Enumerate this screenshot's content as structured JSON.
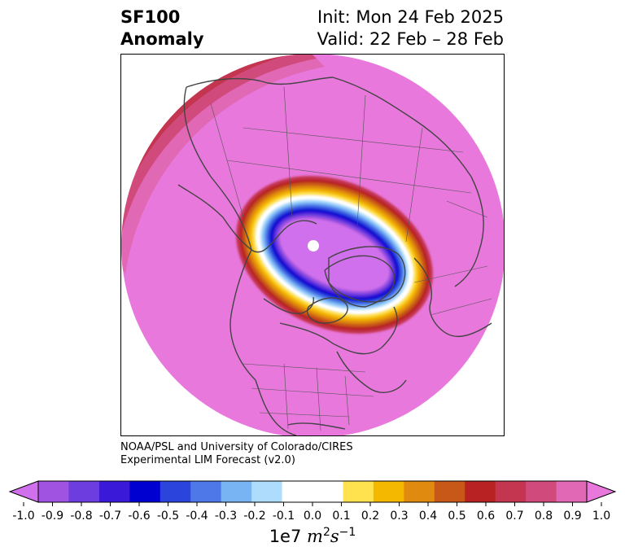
{
  "title": {
    "variable": "SF100",
    "type": "Anomaly",
    "init": "Init: Mon 24 Feb 2025",
    "valid": "Valid: 22 Feb – 28 Feb"
  },
  "credit": {
    "line1": "NOAA/PSL and University of Colorado/CIRES",
    "line2": "Experimental LIM Forecast (v2.0)"
  },
  "colorbar": {
    "unit_prefix": "1e7",
    "unit_m": "m",
    "unit_m_exp": "2",
    "unit_s": "s",
    "unit_s_exp": "−1",
    "ticks": [
      "-1.0",
      "-0.9",
      "-0.8",
      "-0.7",
      "-0.6",
      "-0.5",
      "-0.4",
      "-0.3",
      "-0.2",
      "-0.1",
      "0.0",
      "0.1",
      "0.2",
      "0.3",
      "0.4",
      "0.5",
      "0.6",
      "0.7",
      "0.8",
      "0.9",
      "1.0"
    ],
    "colors": [
      "#a052e0",
      "#6e3de0",
      "#3a1ad8",
      "#0000d0",
      "#2a44dc",
      "#4e78e8",
      "#78b4f4",
      "#aedcfc",
      "#ffffff",
      "#ffffff",
      "#ffe24e",
      "#f4b800",
      "#e08a10",
      "#c85818",
      "#b82222",
      "#c43650",
      "#d04a7c",
      "#e068b4"
    ],
    "under_color": "#d070ec",
    "over_color": "#e878dc"
  },
  "map": {
    "projection": "north-polar-stereographic",
    "background_anomaly_color": "#e878dc",
    "vortex_core_color": "#d070ec",
    "coastline_color": "#444444"
  }
}
